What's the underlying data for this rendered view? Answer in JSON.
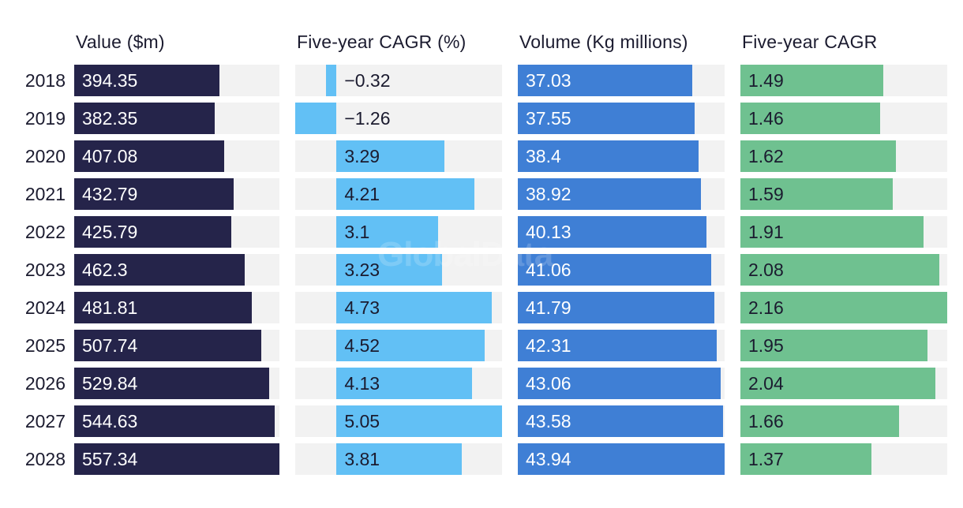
{
  "chart_data": {
    "type": "bar",
    "orientation": "horizontal",
    "categories": [
      "2018",
      "2019",
      "2020",
      "2021",
      "2022",
      "2023",
      "2024",
      "2025",
      "2026",
      "2027",
      "2028"
    ],
    "series": [
      {
        "name": "Value ($m)",
        "color": "#25244a",
        "label_color": "#ffffff",
        "values": [
          394.35,
          382.35,
          407.08,
          432.79,
          425.79,
          462.3,
          481.81,
          507.74,
          529.84,
          544.63,
          557.34
        ],
        "labels": [
          "394.35",
          "382.35",
          "407.08",
          "432.79",
          "425.79",
          "462.3",
          "481.81",
          "507.74",
          "529.84",
          "544.63",
          "557.34"
        ],
        "xlim": [
          0,
          557.34
        ]
      },
      {
        "name": "Five-year CAGR (%)",
        "color": "#62c0f5",
        "label_color": "#1b1b2f",
        "values": [
          -0.32,
          -1.26,
          3.29,
          4.21,
          3.1,
          3.23,
          4.73,
          4.52,
          4.13,
          5.05,
          3.81
        ],
        "labels": [
          "−0.32",
          "−1.26",
          "3.29",
          "4.21",
          "3.1",
          "3.23",
          "4.73",
          "4.52",
          "4.13",
          "5.05",
          "3.81"
        ],
        "xlim": [
          -1.26,
          5.05
        ]
      },
      {
        "name": "Volume (Kg millions)",
        "color": "#3f7fd5",
        "label_color": "#ffffff",
        "values": [
          37.03,
          37.55,
          38.4,
          38.92,
          40.13,
          41.06,
          41.79,
          42.31,
          43.06,
          43.58,
          43.94
        ],
        "labels": [
          "37.03",
          "37.55",
          "38.4",
          "38.92",
          "40.13",
          "41.06",
          "41.79",
          "42.31",
          "43.06",
          "43.58",
          "43.94"
        ],
        "xlim": [
          0,
          43.94
        ]
      },
      {
        "name": "Five-year CAGR",
        "color": "#6fc190",
        "label_color": "#1b1b2f",
        "values": [
          1.49,
          1.46,
          1.62,
          1.59,
          1.91,
          2.08,
          2.16,
          1.95,
          2.04,
          1.66,
          1.37
        ],
        "labels": [
          "1.49",
          "1.46",
          "1.62",
          "1.59",
          "1.91",
          "2.08",
          "2.16",
          "1.95",
          "2.04",
          "1.66",
          "1.37"
        ],
        "xlim": [
          0,
          2.16
        ]
      }
    ],
    "title": "",
    "xlabel": "",
    "ylabel": "",
    "grid": false,
    "legend": "none"
  },
  "watermark": "GlobalData"
}
